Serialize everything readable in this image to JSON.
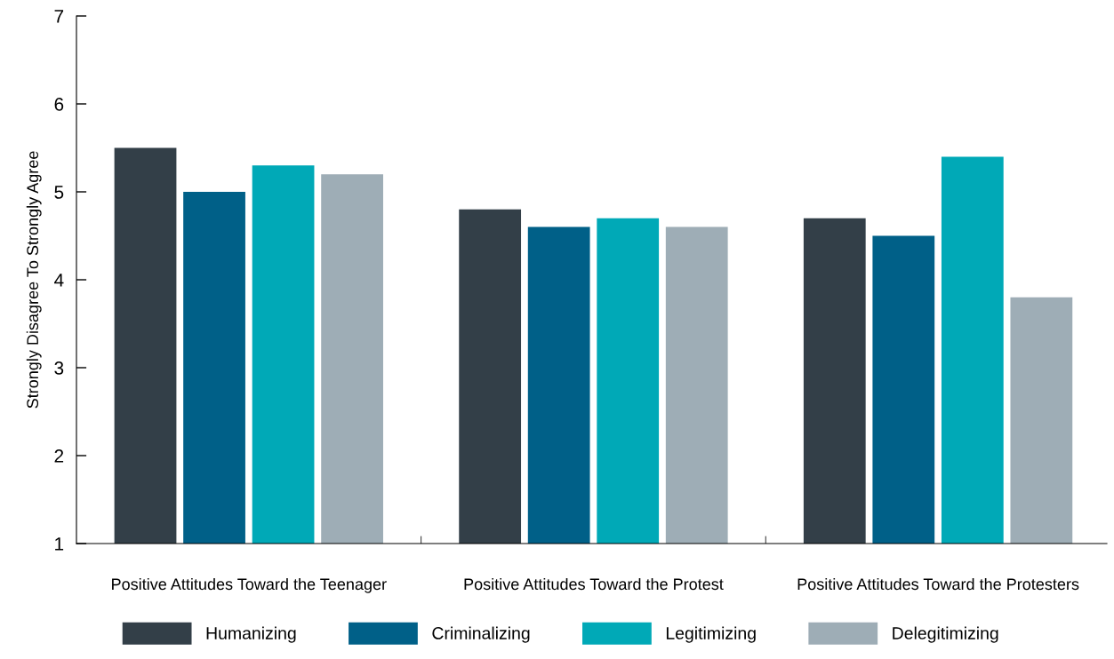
{
  "chart_data": {
    "type": "bar",
    "ylabel": "Strongly Disagree To Strongly Agree",
    "categories": [
      "Positive Attitudes Toward the Teenager",
      "Positive Attitudes Toward the Protest",
      "Positive Attitudes Toward the Protesters"
    ],
    "series": [
      {
        "name": "Humanizing",
        "color": "#333f48",
        "values": [
          5.5,
          4.8,
          4.7
        ]
      },
      {
        "name": "Criminalizing",
        "color": "#006088",
        "values": [
          5.0,
          4.6,
          4.5
        ]
      },
      {
        "name": "Legitimizing",
        "color": "#00a9b7",
        "values": [
          5.3,
          4.7,
          5.4
        ]
      },
      {
        "name": "Delegitimizing",
        "color": "#9eadb6",
        "values": [
          5.2,
          4.6,
          3.8
        ]
      }
    ],
    "ylim": [
      1,
      7
    ],
    "yticks": [
      1,
      2,
      3,
      4,
      5,
      6,
      7
    ],
    "grid": false,
    "legend": "bottom"
  }
}
